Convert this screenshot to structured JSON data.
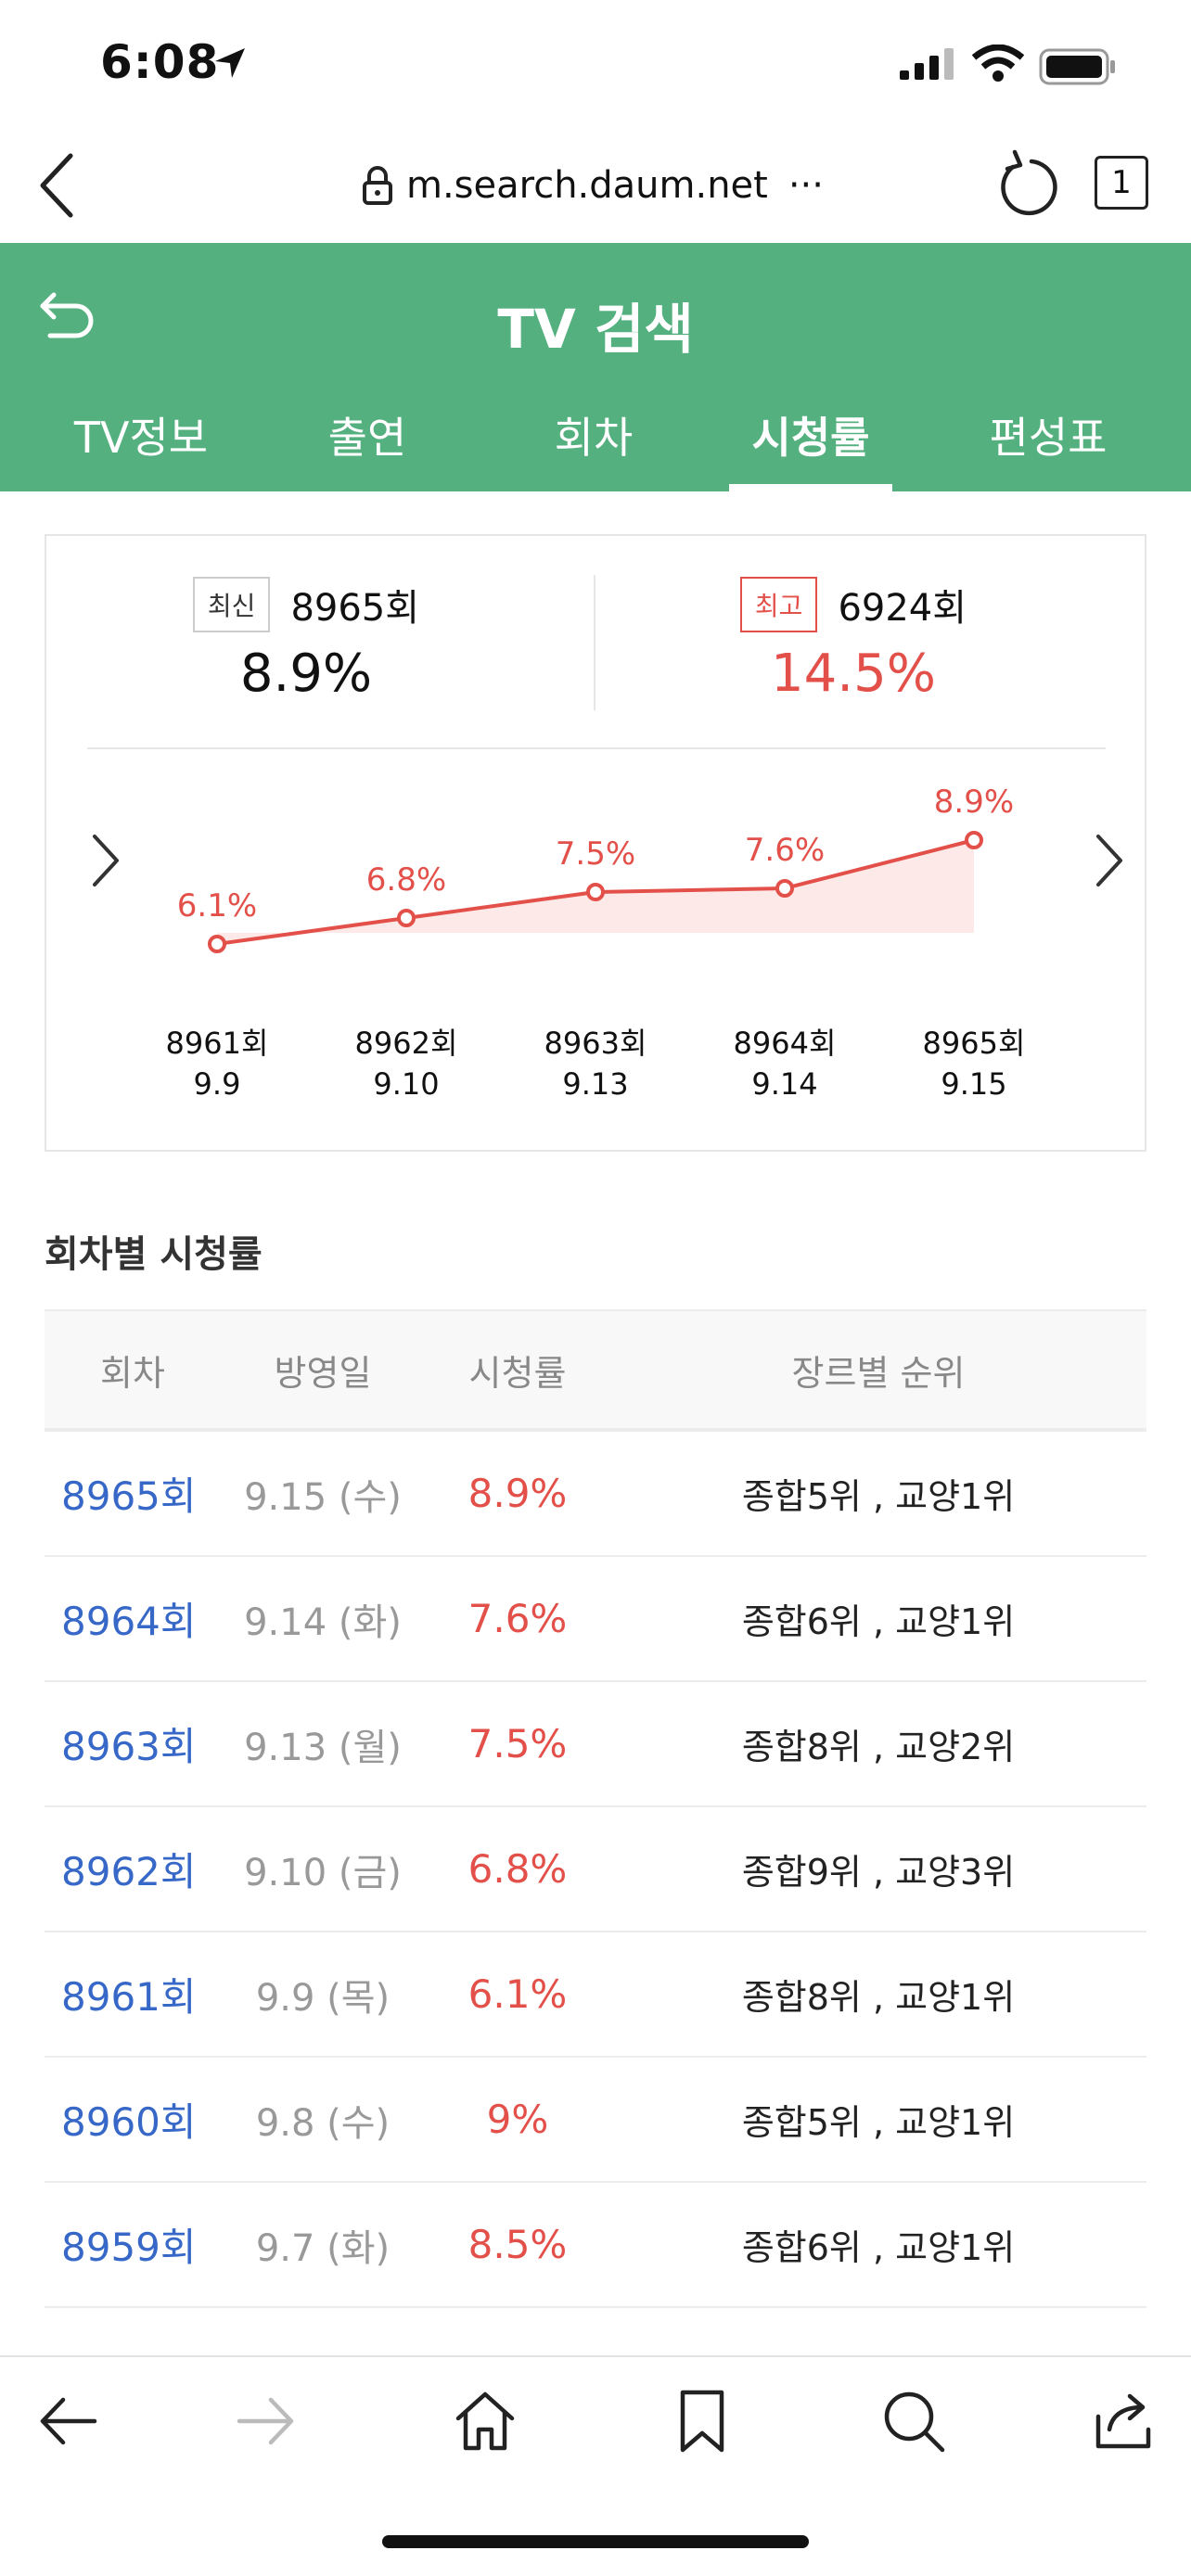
{
  "status": {
    "time": "6:08"
  },
  "browser": {
    "url": "m.search.daum.net",
    "url_more": "···",
    "tab_count": "1"
  },
  "header": {
    "title": "TV 검색",
    "tabs": [
      {
        "label": "TV정보"
      },
      {
        "label": "출연"
      },
      {
        "label": "회차"
      },
      {
        "label": "시청률"
      },
      {
        "label": "편성표"
      }
    ],
    "active_tab": 3
  },
  "summary": {
    "latest": {
      "badge": "최신",
      "episode": "8965회",
      "rating": "8.9%"
    },
    "best": {
      "badge": "최고",
      "episode": "6924회",
      "rating": "14.5%"
    }
  },
  "chart_data": {
    "type": "area",
    "categories": [
      "8961회",
      "8962회",
      "8963회",
      "8964회",
      "8965회"
    ],
    "dates": [
      "9.9",
      "9.10",
      "9.13",
      "9.14",
      "9.15"
    ],
    "values": [
      6.1,
      6.8,
      7.5,
      7.6,
      8.9
    ],
    "labels": [
      "6.1%",
      "6.8%",
      "7.5%",
      "7.6%",
      "8.9%"
    ],
    "ylim": [
      0,
      16
    ],
    "color": "#e3504a",
    "fill": "#fde9e8"
  },
  "table": {
    "title": "회차별 시청률",
    "headers": [
      "회차",
      "방영일",
      "시청률",
      "장르별 순위"
    ],
    "rows": [
      {
        "ep": "8965회",
        "date": "9.15 (수)",
        "rating": "8.9%",
        "rank": "종합5위 , 교양1위"
      },
      {
        "ep": "8964회",
        "date": "9.14 (화)",
        "rating": "7.6%",
        "rank": "종합6위 , 교양1위"
      },
      {
        "ep": "8963회",
        "date": "9.13 (월)",
        "rating": "7.5%",
        "rank": "종합8위 , 교양2위"
      },
      {
        "ep": "8962회",
        "date": "9.10 (금)",
        "rating": "6.8%",
        "rank": "종합9위 , 교양3위"
      },
      {
        "ep": "8961회",
        "date": "9.9 (목)",
        "rating": "6.1%",
        "rank": "종합8위 , 교양1위"
      },
      {
        "ep": "8960회",
        "date": "9.8 (수)",
        "rating": "9%",
        "rank": "종합5위 , 교양1위"
      },
      {
        "ep": "8959회",
        "date": "9.7 (화)",
        "rating": "8.5%",
        "rank": "종합6위 , 교양1위"
      }
    ]
  },
  "colors": {
    "brand_green": "#54b07f",
    "accent_red": "#e3504a",
    "link_blue": "#3768c8"
  }
}
